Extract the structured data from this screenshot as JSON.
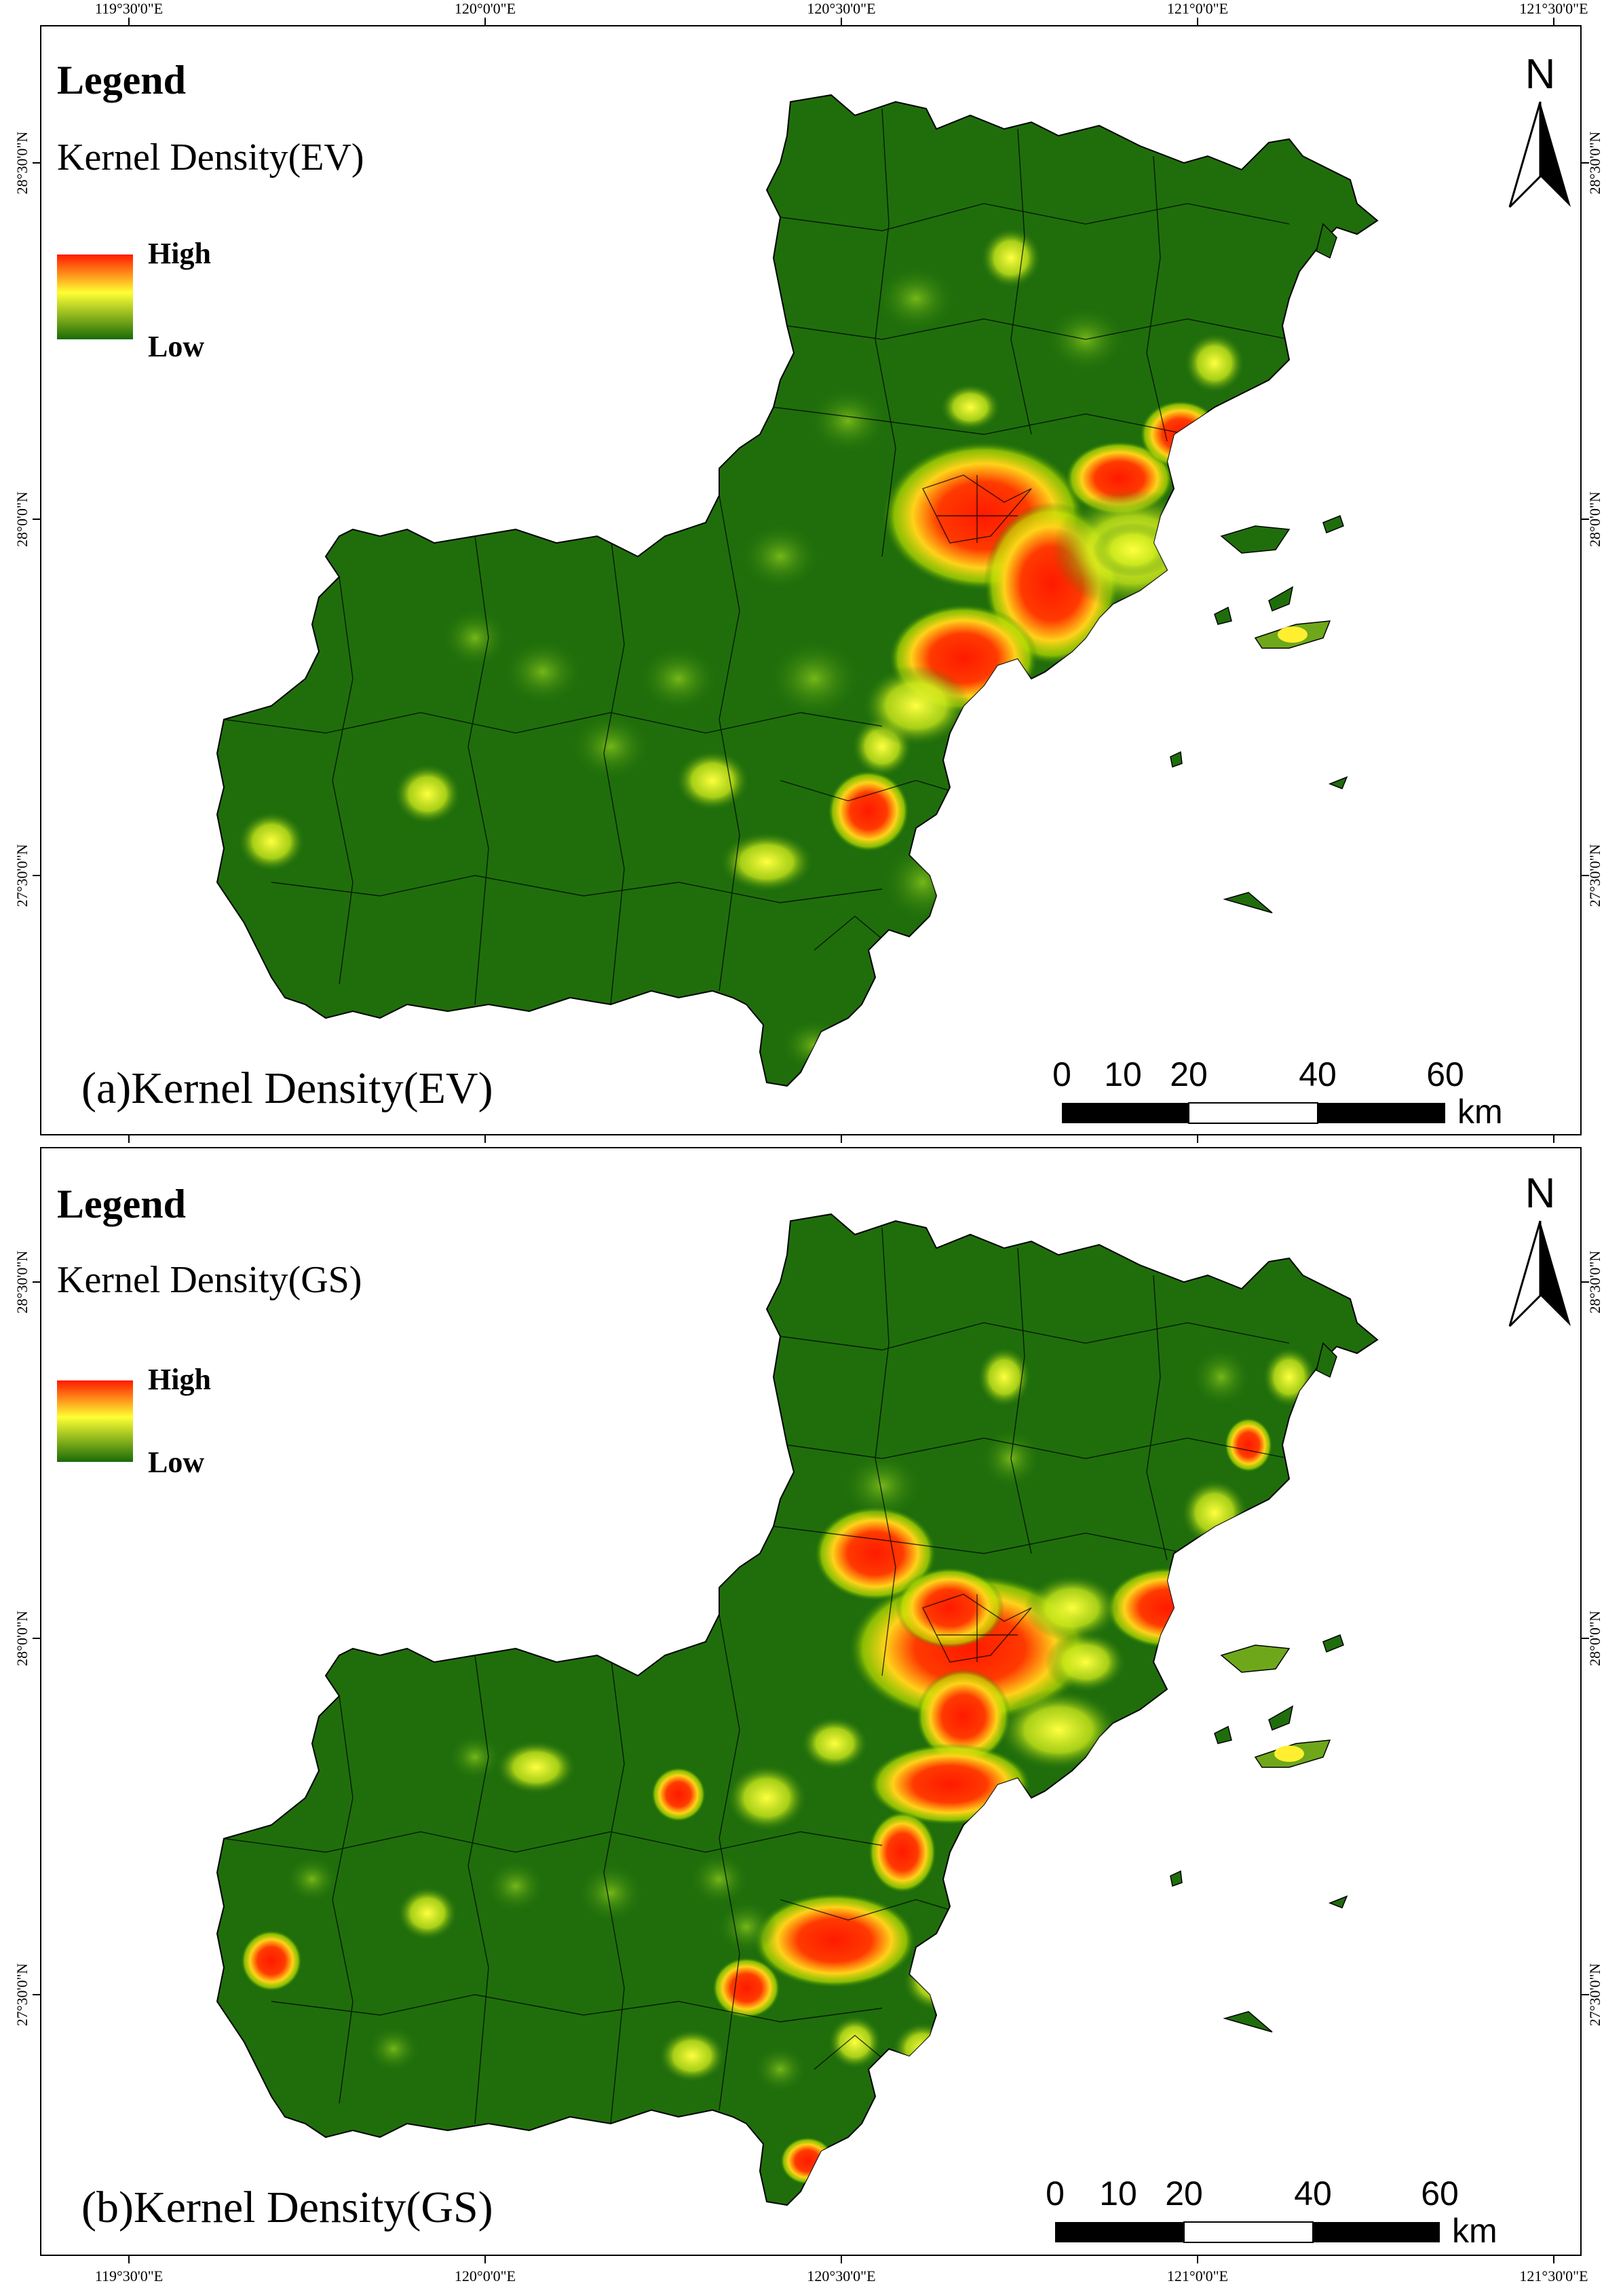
{
  "colors": {
    "high": "#ff1a00",
    "mid": "#ffff33",
    "low": "#1a6b08",
    "background_land": "#1f6e0b",
    "boundary": "#000000"
  },
  "axes": {
    "top_labels": [
      "119°30'0\"E",
      "120°0'0\"E",
      "120°30'0\"E",
      "121°0'0\"E",
      "121°30'0\"E"
    ],
    "bottom_labels": [
      "119°30'0\"E",
      "120°0'0\"E",
      "120°30'0\"E",
      "121°0'0\"E",
      "121°30'0\"E"
    ],
    "left_labels": [
      "28°30'0\"N",
      "28°0'0\"N",
      "27°30'0\"N"
    ],
    "right_labels": [
      "28°30'0\"N",
      "28°0'0\"N",
      "27°30'0\"N"
    ]
  },
  "scale_bar": {
    "labels": [
      "0",
      "10",
      "20",
      "40",
      "60"
    ],
    "unit": "km"
  },
  "north_arrow": {
    "letter": "N",
    "icon": "north-arrow-icon"
  },
  "panels": [
    {
      "legend_title": "Legend",
      "legend_subtitle": "Kernel Density(EV)",
      "legend_high": "High",
      "legend_low": "Low",
      "caption": "(a)Kernel Density(EV)"
    },
    {
      "legend_title": "Legend",
      "legend_subtitle": "Kernel Density(GS)",
      "legend_high": "High",
      "legend_low": "Low",
      "caption": "(b)Kernel Density(GS)"
    }
  ]
}
